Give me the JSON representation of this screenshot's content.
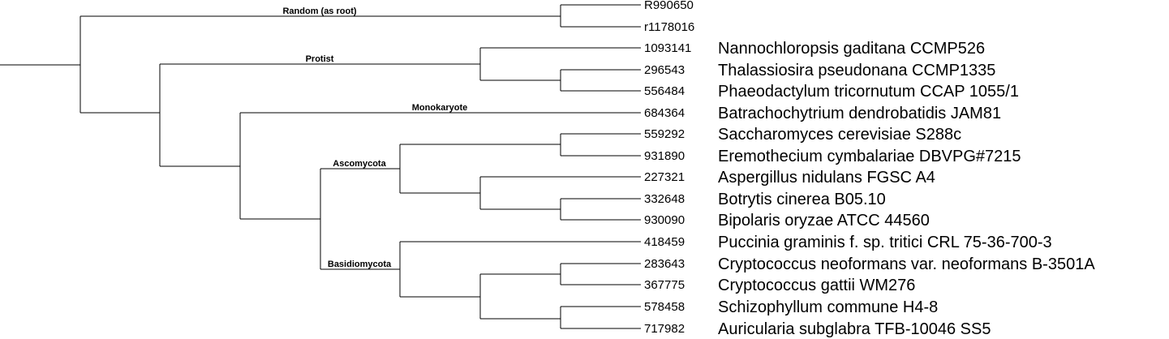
{
  "clades": {
    "random": "Random (as root)",
    "protist": "Protist",
    "monokaryote": "Monokaryote",
    "ascomycota": "Ascomycota",
    "basidiomycota": "Basidiomycota"
  },
  "leaves": [
    {
      "id": "R990650",
      "species": ""
    },
    {
      "id": "r1178016",
      "species": ""
    },
    {
      "id": "1093141",
      "species": "Nannochloropsis gaditana CCMP526"
    },
    {
      "id": "296543",
      "species": "Thalassiosira pseudonana CCMP1335"
    },
    {
      "id": "556484",
      "species": "Phaeodactylum tricornutum CCAP 1055/1"
    },
    {
      "id": "684364",
      "species": "Batrachochytrium dendrobatidis JAM81"
    },
    {
      "id": "559292",
      "species": "Saccharomyces cerevisiae S288c"
    },
    {
      "id": "931890",
      "species": "Eremothecium cymbalariae DBVPG#7215"
    },
    {
      "id": "227321",
      "species": "Aspergillus nidulans FGSC A4"
    },
    {
      "id": "332648",
      "species": "Botrytis cinerea B05.10"
    },
    {
      "id": "930090",
      "species": "Bipolaris oryzae ATCC 44560"
    },
    {
      "id": "418459",
      "species": "Puccinia graminis f. sp. tritici CRL 75-36-700-3"
    },
    {
      "id": "283643",
      "species": "Cryptococcus neoformans var. neoformans B-3501A"
    },
    {
      "id": "367775",
      "species": "Cryptococcus gattii WM276"
    },
    {
      "id": "578458",
      "species": "Schizophyllum commune H4-8"
    },
    {
      "id": "717982",
      "species": "Auricularia subglabra TFB-10046 SS5"
    }
  ]
}
